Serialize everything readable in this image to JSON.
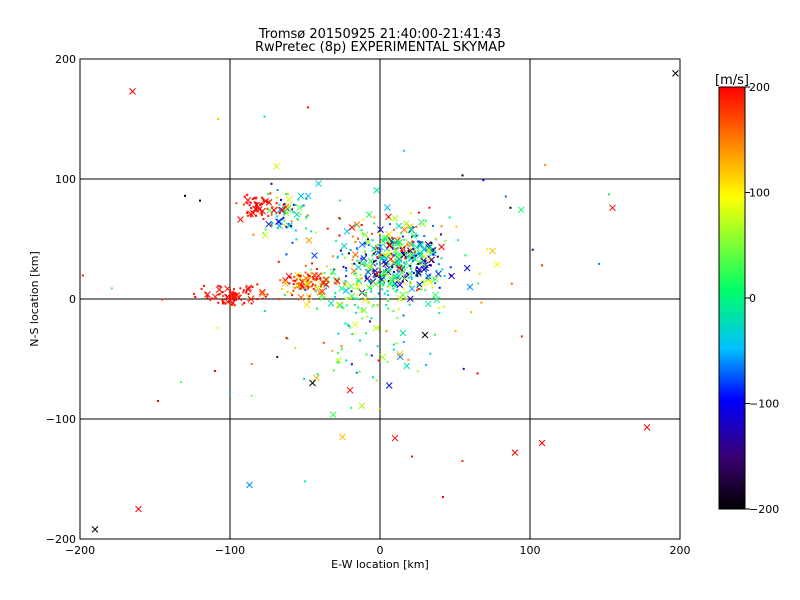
{
  "chart_data": {
    "type": "scatter",
    "title": "Tromsø 20150925 21:40:00-21:41:43",
    "subtitle": "RwPretec (8p) EXPERIMENTAL SKYMAP",
    "xlabel": "E-W location [km]",
    "ylabel": "N-S location [km]",
    "xlim": [
      -200,
      200
    ],
    "ylim": [
      -200,
      200
    ],
    "xticks": [
      -200,
      -100,
      0,
      100,
      200
    ],
    "yticks": [
      -200,
      -100,
      0,
      100,
      200
    ],
    "xtick_labels": [
      "−200",
      "−100",
      "0",
      "100",
      "200"
    ],
    "ytick_labels": [
      "−200",
      "−100",
      "0",
      "100",
      "200"
    ],
    "grid": true,
    "colorbar": {
      "label": "[m/s]",
      "range": [
        -200,
        200
      ],
      "ticks": [
        200,
        100,
        0,
        -100,
        -200
      ],
      "tick_labels": [
        "200",
        "100",
        "0",
        "−100",
        "−200"
      ],
      "colormap": [
        "#000000",
        "#3a0070",
        "#0000ff",
        "#00c0ff",
        "#00ff66",
        "#ffff00",
        "#ff8000",
        "#ff0000"
      ]
    },
    "markers": {
      "cross": "large x",
      "dot": "small dot"
    },
    "clusters": [
      {
        "x": 5,
        "y": 30,
        "sx": 16,
        "sy": 14,
        "v": -40,
        "sv": 90,
        "n": 260
      },
      {
        "x": 28,
        "y": 35,
        "sx": 10,
        "sy": 10,
        "v": -80,
        "sv": 60,
        "n": 80
      },
      {
        "x": -10,
        "y": 10,
        "sx": 22,
        "sy": 10,
        "v": 30,
        "sv": 50,
        "n": 120
      },
      {
        "x": -48,
        "y": 14,
        "sx": 8,
        "sy": 5,
        "v": 170,
        "sv": 40,
        "n": 90
      },
      {
        "x": -62,
        "y": 72,
        "sx": 9,
        "sy": 10,
        "v": 0,
        "sv": 70,
        "n": 70
      },
      {
        "x": -80,
        "y": 76,
        "sx": 7,
        "sy": 6,
        "v": 200,
        "sv": 20,
        "n": 60
      },
      {
        "x": -95,
        "y": 3,
        "sx": 12,
        "sy": 5,
        "v": 200,
        "sv": 20,
        "n": 70
      },
      {
        "x": -5,
        "y": -40,
        "sx": 20,
        "sy": 20,
        "v": 20,
        "sv": 70,
        "n": 60
      },
      {
        "x": 10,
        "y": 50,
        "sx": 20,
        "sy": 12,
        "v": 120,
        "sv": 80,
        "n": 80
      },
      {
        "x": 0,
        "y": 20,
        "sx": 70,
        "sy": 60,
        "v": 60,
        "sv": 120,
        "n": 70
      }
    ],
    "outliers": [
      {
        "x": -165,
        "y": 173,
        "v": 200,
        "m": "cross"
      },
      {
        "x": -108,
        "y": 150,
        "v": 120,
        "m": "dot"
      },
      {
        "x": -77,
        "y": 152,
        "v": -20,
        "m": "dot"
      },
      {
        "x": -130,
        "y": 86,
        "v": -200,
        "m": "dot"
      },
      {
        "x": -120,
        "y": 82,
        "v": -200,
        "m": "dot"
      },
      {
        "x": 197,
        "y": 188,
        "v": -200,
        "m": "cross"
      },
      {
        "x": 155,
        "y": 76,
        "v": 200,
        "m": "cross"
      },
      {
        "x": 87,
        "y": 76,
        "v": -200,
        "m": "dot"
      },
      {
        "x": 55,
        "y": 103,
        "v": -200,
        "m": "dot"
      },
      {
        "x": 108,
        "y": 28,
        "v": 180,
        "m": "dot"
      },
      {
        "x": -190,
        "y": -192,
        "v": -200,
        "m": "cross"
      },
      {
        "x": -161,
        "y": -175,
        "v": 200,
        "m": "cross"
      },
      {
        "x": -148,
        "y": -85,
        "v": 200,
        "m": "dot"
      },
      {
        "x": -87,
        "y": -155,
        "v": -60,
        "m": "cross"
      },
      {
        "x": -50,
        "y": -152,
        "v": 0,
        "m": "dot"
      },
      {
        "x": -25,
        "y": -115,
        "v": 120,
        "m": "cross"
      },
      {
        "x": 10,
        "y": -116,
        "v": 200,
        "m": "cross"
      },
      {
        "x": 42,
        "y": -165,
        "v": 200,
        "m": "dot"
      },
      {
        "x": 55,
        "y": -135,
        "v": 180,
        "m": "dot"
      },
      {
        "x": 90,
        "y": -128,
        "v": 200,
        "m": "cross"
      },
      {
        "x": 108,
        "y": -120,
        "v": 200,
        "m": "cross"
      },
      {
        "x": 178,
        "y": -107,
        "v": 200,
        "m": "cross"
      },
      {
        "x": -45,
        "y": -70,
        "v": -200,
        "m": "cross"
      },
      {
        "x": -20,
        "y": -76,
        "v": 200,
        "m": "cross"
      },
      {
        "x": 65,
        "y": -62,
        "v": 200,
        "m": "dot"
      },
      {
        "x": 75,
        "y": 40,
        "v": 120,
        "m": "cross"
      },
      {
        "x": 60,
        "y": 10,
        "v": -60,
        "m": "cross"
      },
      {
        "x": -110,
        "y": -60,
        "v": 200,
        "m": "dot"
      },
      {
        "x": -100,
        "y": -78,
        "v": -40,
        "m": "dot"
      },
      {
        "x": 30,
        "y": -30,
        "v": -200,
        "m": "cross"
      }
    ]
  }
}
